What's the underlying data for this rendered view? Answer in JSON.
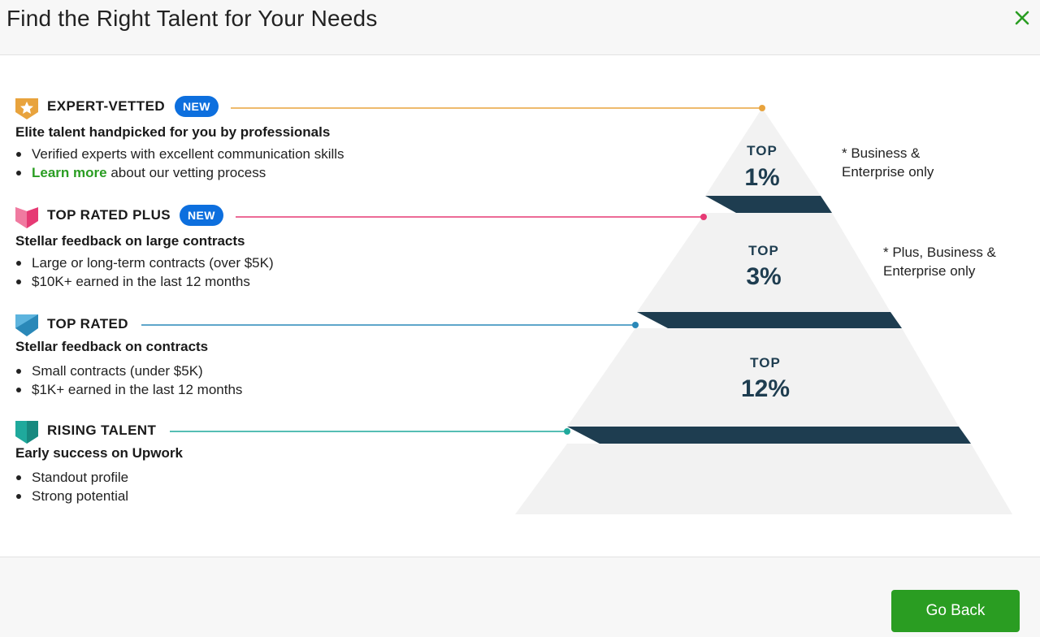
{
  "header": {
    "title": "Find the Right Talent for Your Needs"
  },
  "icons": {
    "close": "close-icon"
  },
  "colors": {
    "accent_green": "#2a9d22",
    "badge_blue": "#0d6fde",
    "pyramid_fill": "#f2f2f2",
    "pyramid_band": "#1e3d50",
    "expert_vetted": "#e8a33d",
    "top_rated_plus": "#e63a74",
    "top_rated": "#2a88b8",
    "rising_talent": "#1fa99c"
  },
  "tiers": [
    {
      "name": "EXPERT-VETTED",
      "badge": "NEW",
      "icon": "star-shield-icon",
      "subtitle": "Elite talent handpicked for you by professionals",
      "bullet1": "Verified experts with excellent communication skills",
      "bullet2_link": "Learn more",
      "bullet2_rest": " about our vetting process"
    },
    {
      "name": "TOP RATED PLUS",
      "badge": "NEW",
      "icon": "pink-shield-icon",
      "subtitle": "Stellar feedback on large contracts",
      "bullet1": "Large or long-term contracts (over $5K)",
      "bullet2": "$10K+ earned in the last 12 months"
    },
    {
      "name": "TOP RATED",
      "icon": "blue-shield-icon",
      "subtitle": "Stellar feedback on contracts",
      "bullet1": "Small contracts (under $5K)",
      "bullet2": "$1K+ earned in the last 12 months"
    },
    {
      "name": "RISING TALENT",
      "icon": "teal-shield-icon",
      "subtitle": "Early success on Upwork",
      "bullet1": "Standout profile",
      "bullet2": "Strong potential"
    }
  ],
  "pyramid": {
    "levels": [
      {
        "top": "TOP",
        "percent": "1%"
      },
      {
        "top": "TOP",
        "percent": "3%"
      },
      {
        "top": "TOP",
        "percent": "12%"
      }
    ],
    "note1_line1": "* Business &",
    "note1_line2": "Enterprise only",
    "note2_line1": "* Plus, Business &",
    "note2_line2": "Enterprise only"
  },
  "footer": {
    "go_back_label": "Go Back"
  }
}
